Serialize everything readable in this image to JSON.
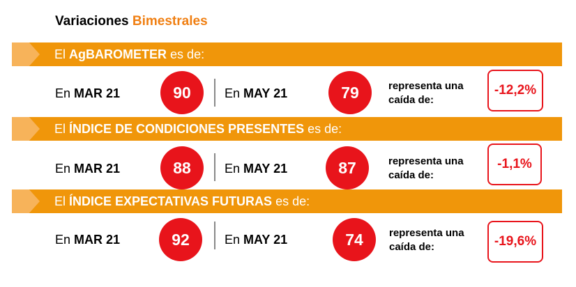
{
  "title": {
    "prefix": "Variaciones",
    "accent": "Bimestrales"
  },
  "sections": [
    {
      "band": {
        "prefix": "El",
        "bold": "AgBAROMETER",
        "suffix": "es de:"
      },
      "from": {
        "en": "En",
        "period": "MAR 21",
        "value": "90"
      },
      "to": {
        "en": "En",
        "period": "MAY 21",
        "value": "79"
      },
      "change_text": [
        "representa una",
        "caída de:"
      ],
      "change_value": "-12,2%"
    },
    {
      "band": {
        "prefix": "El",
        "bold": "ÍNDICE DE CONDICIONES PRESENTES",
        "suffix": "es de:"
      },
      "from": {
        "en": "En",
        "period": "MAR 21",
        "value": "88"
      },
      "to": {
        "en": "En",
        "period": "MAY 21",
        "value": "87"
      },
      "change_text": [
        "representa una",
        "caída de:"
      ],
      "change_value": "-1,1%"
    },
    {
      "band": {
        "prefix": "El",
        "bold": "ÍNDICE EXPECTATIVAS FUTURAS",
        "suffix": "es de:"
      },
      "from": {
        "en": "En",
        "period": "MAR 21",
        "value": "92"
      },
      "to": {
        "en": "En",
        "period": "MAY 21",
        "value": "74"
      },
      "change_text": [
        "representa una",
        "caída de:"
      ],
      "change_value": "-19,6%"
    }
  ],
  "colors": {
    "band": "#F0960A",
    "accent": "#F07F12",
    "circle": "#E8141B"
  }
}
